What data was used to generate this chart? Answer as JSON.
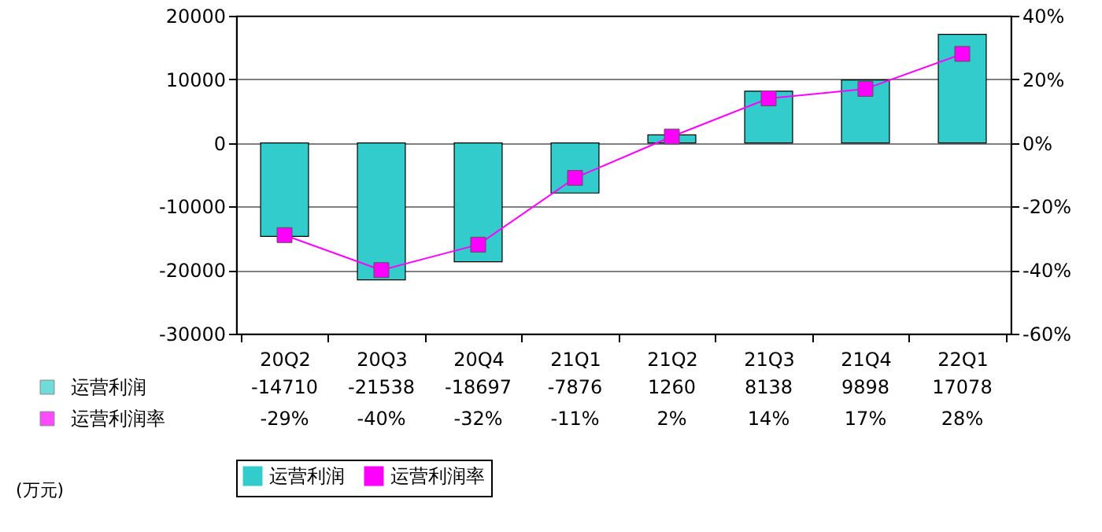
{
  "chart_data": {
    "type": "bar",
    "categories": [
      "20Q2",
      "20Q3",
      "20Q4",
      "21Q1",
      "21Q2",
      "21Q3",
      "21Q4",
      "22Q1"
    ],
    "series": [
      {
        "name": "运营利润",
        "color": "#33cccc",
        "values": [
          -14710,
          -21538,
          -18697,
          -7876,
          1260,
          8138,
          9898,
          17078
        ],
        "value_labels": [
          "-14710",
          "-21538",
          "-18697",
          "-7876",
          "1260",
          "8138",
          "9898",
          "17078"
        ]
      },
      {
        "name": "运营利润率",
        "type": "line",
        "axis": "y2",
        "color": "#ff00ff",
        "values": [
          -29,
          -40,
          -32,
          -11,
          2,
          14,
          17,
          28
        ],
        "value_labels": [
          "-29%",
          "-40%",
          "-32%",
          "-11%",
          "2%",
          "14%",
          "17%",
          "28%"
        ]
      }
    ],
    "ylim": [
      -30000,
      20000
    ],
    "yticks": [
      -30000,
      -20000,
      -10000,
      0,
      10000,
      20000
    ],
    "y2lim": [
      -60,
      40
    ],
    "y2ticks": [
      {
        "value": -60,
        "label": "-60%"
      },
      {
        "value": -40,
        "label": "-40%"
      },
      {
        "value": -20,
        "label": "-20%"
      },
      {
        "value": 0,
        "label": "0%"
      },
      {
        "value": 20,
        "label": "20%"
      },
      {
        "value": 40,
        "label": "40%"
      }
    ],
    "grid": "y",
    "legend": "bottom",
    "marker": "square",
    "annotations": [
      "(万元)"
    ]
  }
}
